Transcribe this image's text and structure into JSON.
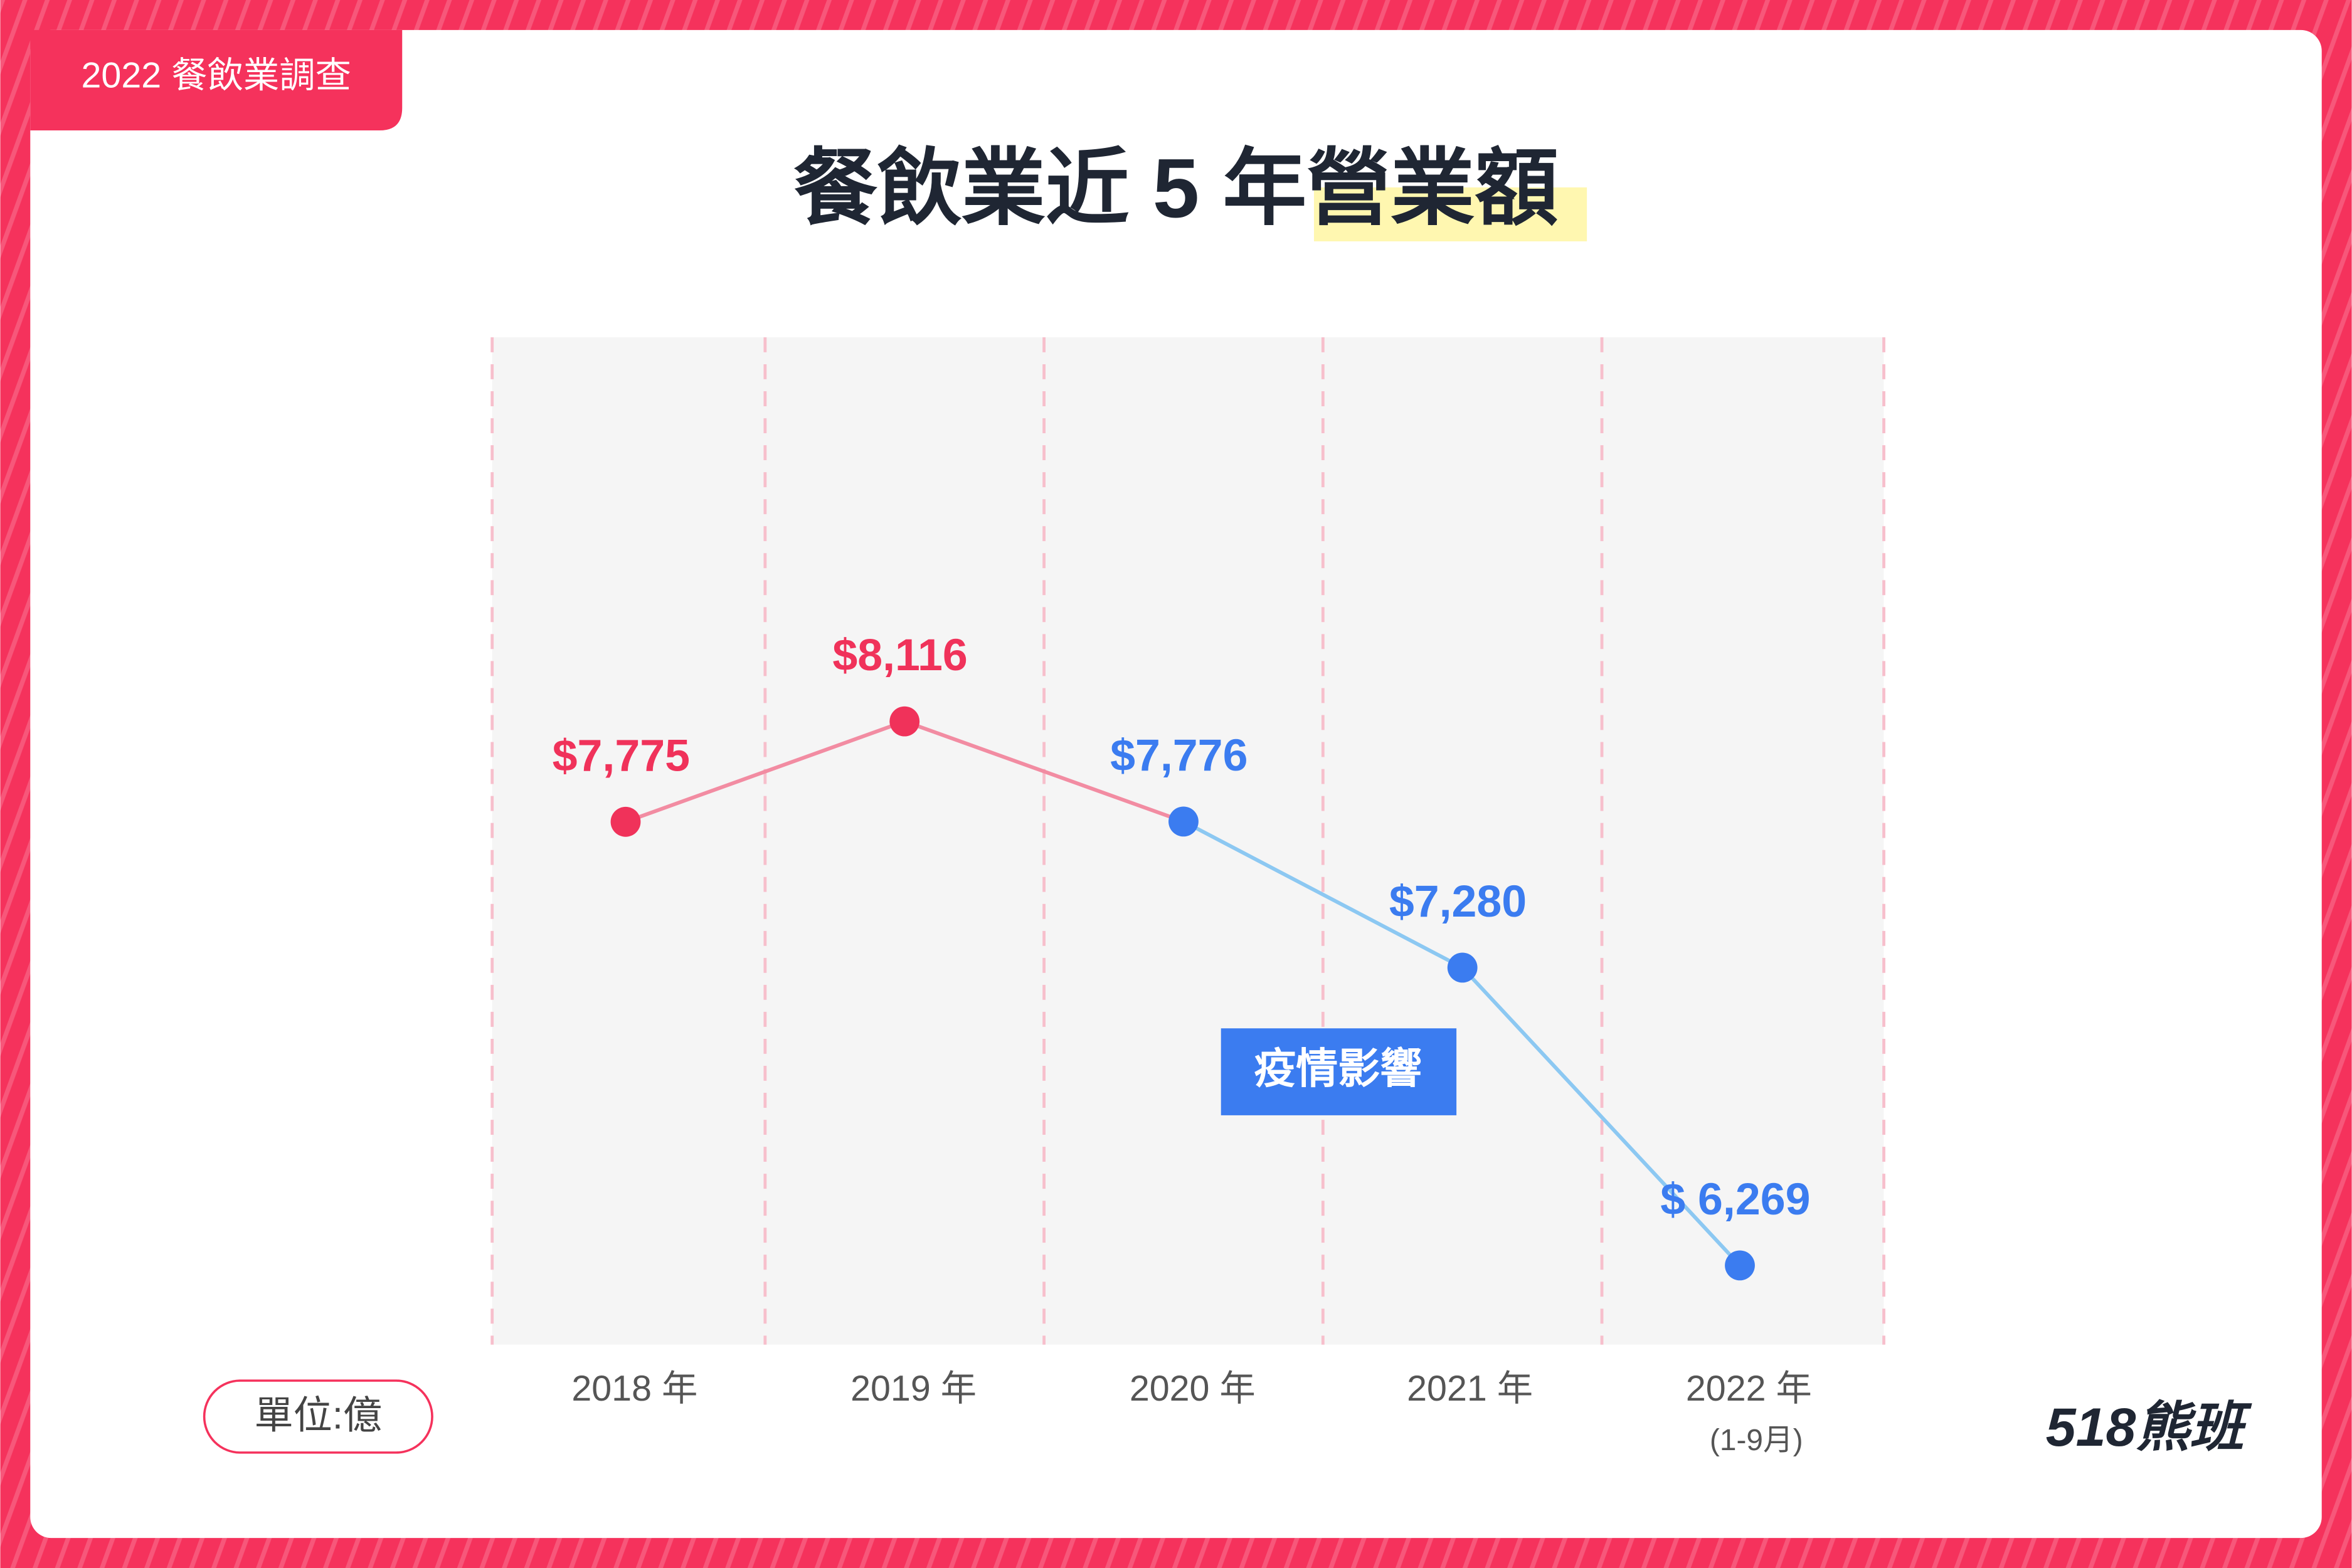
{
  "badge": "2022 餐飲業調查",
  "chart_data": {
    "type": "line",
    "title": "餐飲業近 5 年營業額",
    "categories": [
      "2018 年",
      "2019 年",
      "2020 年",
      "2021 年",
      "2022 年"
    ],
    "category_notes": [
      null,
      null,
      null,
      null,
      "(1-9月)"
    ],
    "values": [
      7775,
      8116,
      7776,
      7280,
      6269
    ],
    "value_labels": [
      "$7,775",
      "$8,116",
      "$7,776",
      "$7,280",
      "$ 6,269"
    ],
    "point_colors": [
      "#f0325a",
      "#f0325a",
      "#3b7cf0",
      "#3b7cf0",
      "#3b7cf0"
    ],
    "line_colors": [
      "#f28ca2",
      "#f28ca2",
      "#8cc8f2",
      "#8cc8f2"
    ],
    "ylim": [
      6000,
      9420
    ],
    "annotation": "疫情影響",
    "unit": "單位:億"
  },
  "logo": "518熊班"
}
